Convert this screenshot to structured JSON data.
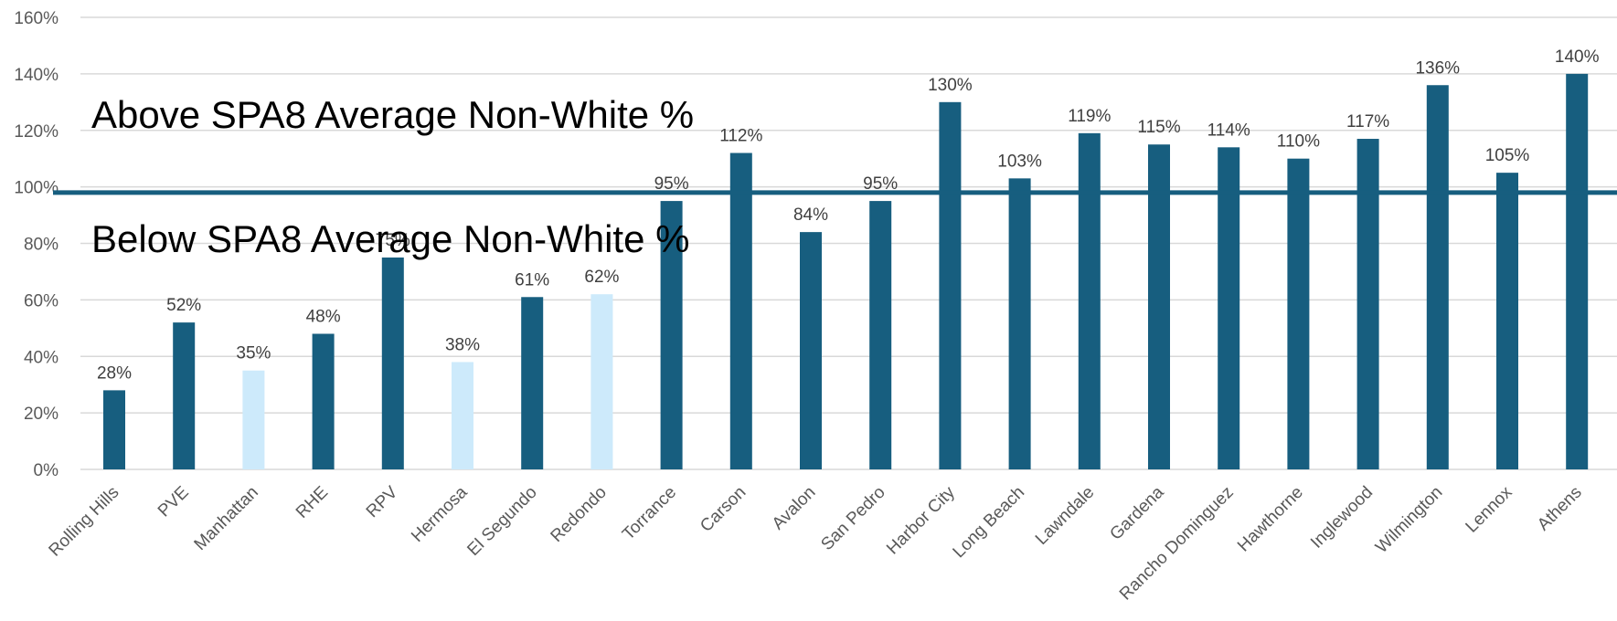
{
  "chart_data": {
    "type": "bar",
    "title": "",
    "xlabel": "",
    "ylabel": "",
    "ylim": [
      0,
      160
    ],
    "yticks": [
      "0%",
      "20%",
      "40%",
      "60%",
      "80%",
      "100%",
      "120%",
      "140%",
      "160%"
    ],
    "grid": true,
    "categories": [
      "Rolling Hills",
      "PVE",
      "Manhattan",
      "RHE",
      "RPV",
      "Hermosa",
      "El Segundo",
      "Redondo",
      "Torrance",
      "Carson",
      "Avalon",
      "San Pedro",
      "Harbor City",
      "Long Beach",
      "Lawndale",
      "Gardena",
      "Rancho Dominguez",
      "Hawthorne",
      "Inglewood",
      "Wilmington",
      "Lennox",
      "Athens"
    ],
    "values": [
      28,
      52,
      35,
      48,
      75,
      38,
      61,
      62,
      95,
      112,
      84,
      95,
      130,
      103,
      119,
      115,
      114,
      110,
      117,
      136,
      105,
      140
    ],
    "data_labels": [
      "28%",
      "52%",
      "35%",
      "48%",
      "75%",
      "38%",
      "61%",
      "62%",
      "95%",
      "112%",
      "84%",
      "95%",
      "130%",
      "103%",
      "119%",
      "115%",
      "114%",
      "110%",
      "117%",
      "136%",
      "105%",
      "140%"
    ],
    "highlighted": [
      "Manhattan",
      "Hermosa",
      "Redondo"
    ],
    "colors": {
      "bar": "#175e7f",
      "highlight": "#cdeafb",
      "reference_line": "#175e7f"
    },
    "reference_line": {
      "value": 98
    },
    "annotations": {
      "above": "Above SPA8 Average Non-White %",
      "below": "Below SPA8 Average Non-White %"
    }
  }
}
